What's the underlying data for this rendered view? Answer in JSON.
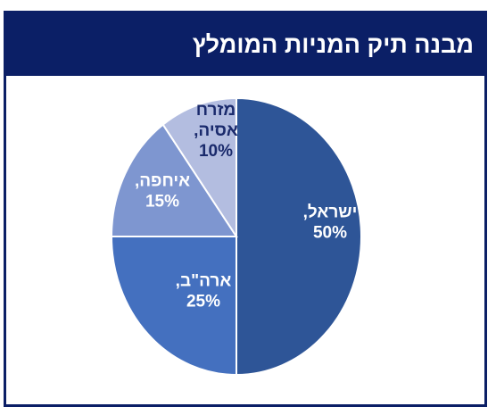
{
  "title": "מבנה תיק המניות המומלץ",
  "colors": {
    "frame": "#0b1f66",
    "label_light": "#ffffff",
    "label_dark": "#1a2a6c",
    "separator": "#ffffff"
  },
  "chart_data": {
    "type": "pie",
    "title": "מבנה תיק המניות המומלץ",
    "slices": [
      {
        "name": "ישראל",
        "value": 50,
        "label_line1": "ישראל,",
        "label_line2": "50%",
        "color": "#2e5597"
      },
      {
        "name": "ארה\"ב",
        "value": 25,
        "label_line1": "ארה\"ב,",
        "label_line2": "25%",
        "color": "#4470bf"
      },
      {
        "name": "איחפה",
        "value": 15,
        "label_line1": "איחפה,",
        "label_line2": "15%",
        "color": "#7e96d0"
      },
      {
        "name": "מזרח אסיה",
        "value": 10,
        "label_line1": "מזרח",
        "label_line2": "אסיה,",
        "label_line3": "10%",
        "color": "#b3bde0"
      }
    ],
    "start_angle": "12 o'clock",
    "direction": "clockwise"
  }
}
